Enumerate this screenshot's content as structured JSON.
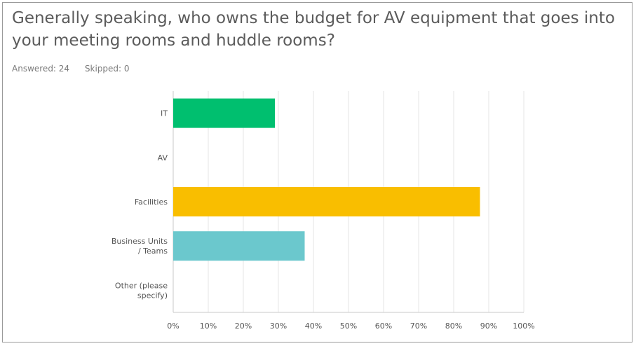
{
  "question": {
    "title": "Generally speaking, who owns the budget for AV equipment that goes into your meeting rooms and huddle rooms?",
    "answered": "Answered: 24",
    "skipped": "Skipped: 0"
  },
  "chart_data": {
    "type": "bar",
    "orientation": "horizontal",
    "title": "",
    "xlabel": "",
    "ylabel": "",
    "categories": [
      [
        "IT"
      ],
      [
        "AV"
      ],
      [
        "Facilities"
      ],
      [
        "Business Units",
        "/ Teams"
      ],
      [
        "Other (please",
        "specify)"
      ]
    ],
    "values": [
      29,
      0,
      87.5,
      37.5,
      0
    ],
    "colors": [
      "#00bf6f",
      "#7a7a7a",
      "#f9be00",
      "#6bc8cd",
      "#7a7a7a"
    ],
    "xlim": [
      0,
      100
    ],
    "xticks": [
      "0%",
      "10%",
      "20%",
      "30%",
      "40%",
      "50%",
      "60%",
      "70%",
      "80%",
      "90%",
      "100%"
    ],
    "grid": true
  }
}
